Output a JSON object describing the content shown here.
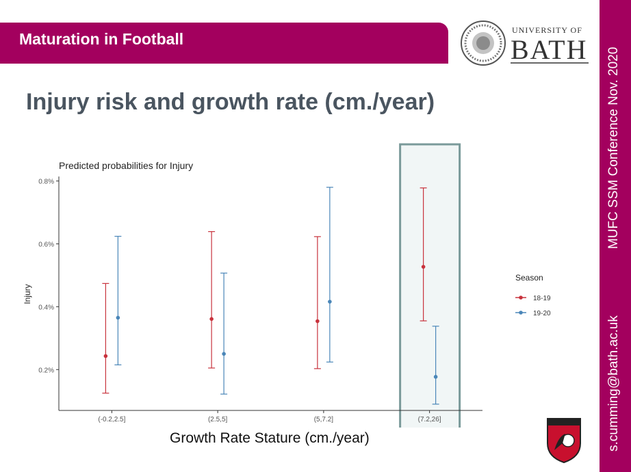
{
  "header": {
    "title": "Maturation in Football"
  },
  "logo": {
    "university_line": "UNIVERSITY OF",
    "name": "BATH"
  },
  "slide_title": "Injury risk and growth rate (cm./year)",
  "side": {
    "conference": "MUFC SSM Conference  Nov. 2020",
    "email": "s.cumming@bath.ac.uk"
  },
  "badge": {
    "label": "AFC BOURNEMOUTH"
  },
  "colors": {
    "brand": "#a3005e",
    "series_18_19": "#c8323c",
    "series_19_20": "#4a86b8",
    "highlight": "#7a9a9a"
  },
  "chart_data": {
    "type": "scatter",
    "title": "Predicted probabilities for Injury",
    "xlabel": "Growth Rate Stature (cm./year)",
    "ylabel": "Injury",
    "categories": [
      "(-0.2,2.5]",
      "(2.5,5]",
      "(5,7.2]",
      "(7.2,26]"
    ],
    "yticks": [
      "0.2%",
      "0.4%",
      "0.6%",
      "0.8%"
    ],
    "ylim": [
      0.0007,
      0.0081
    ],
    "legend_title": "Season",
    "legend_position": "right",
    "grid": false,
    "highlighted_category": "(7.2,26]",
    "series": [
      {
        "name": "18-19",
        "color": "#c8323c",
        "values": [
          0.00243,
          0.00361,
          0.00354,
          0.00527
        ],
        "lower": [
          0.00125,
          0.00205,
          0.00203,
          0.00355
        ],
        "upper": [
          0.00474,
          0.00639,
          0.00623,
          0.00778
        ]
      },
      {
        "name": "19-20",
        "color": "#4a86b8",
        "values": [
          0.00365,
          0.0025,
          0.00416,
          0.00177
        ],
        "lower": [
          0.00215,
          0.00122,
          0.00224,
          0.0009
        ],
        "upper": [
          0.00624,
          0.00507,
          0.0078,
          0.00338
        ]
      }
    ]
  }
}
